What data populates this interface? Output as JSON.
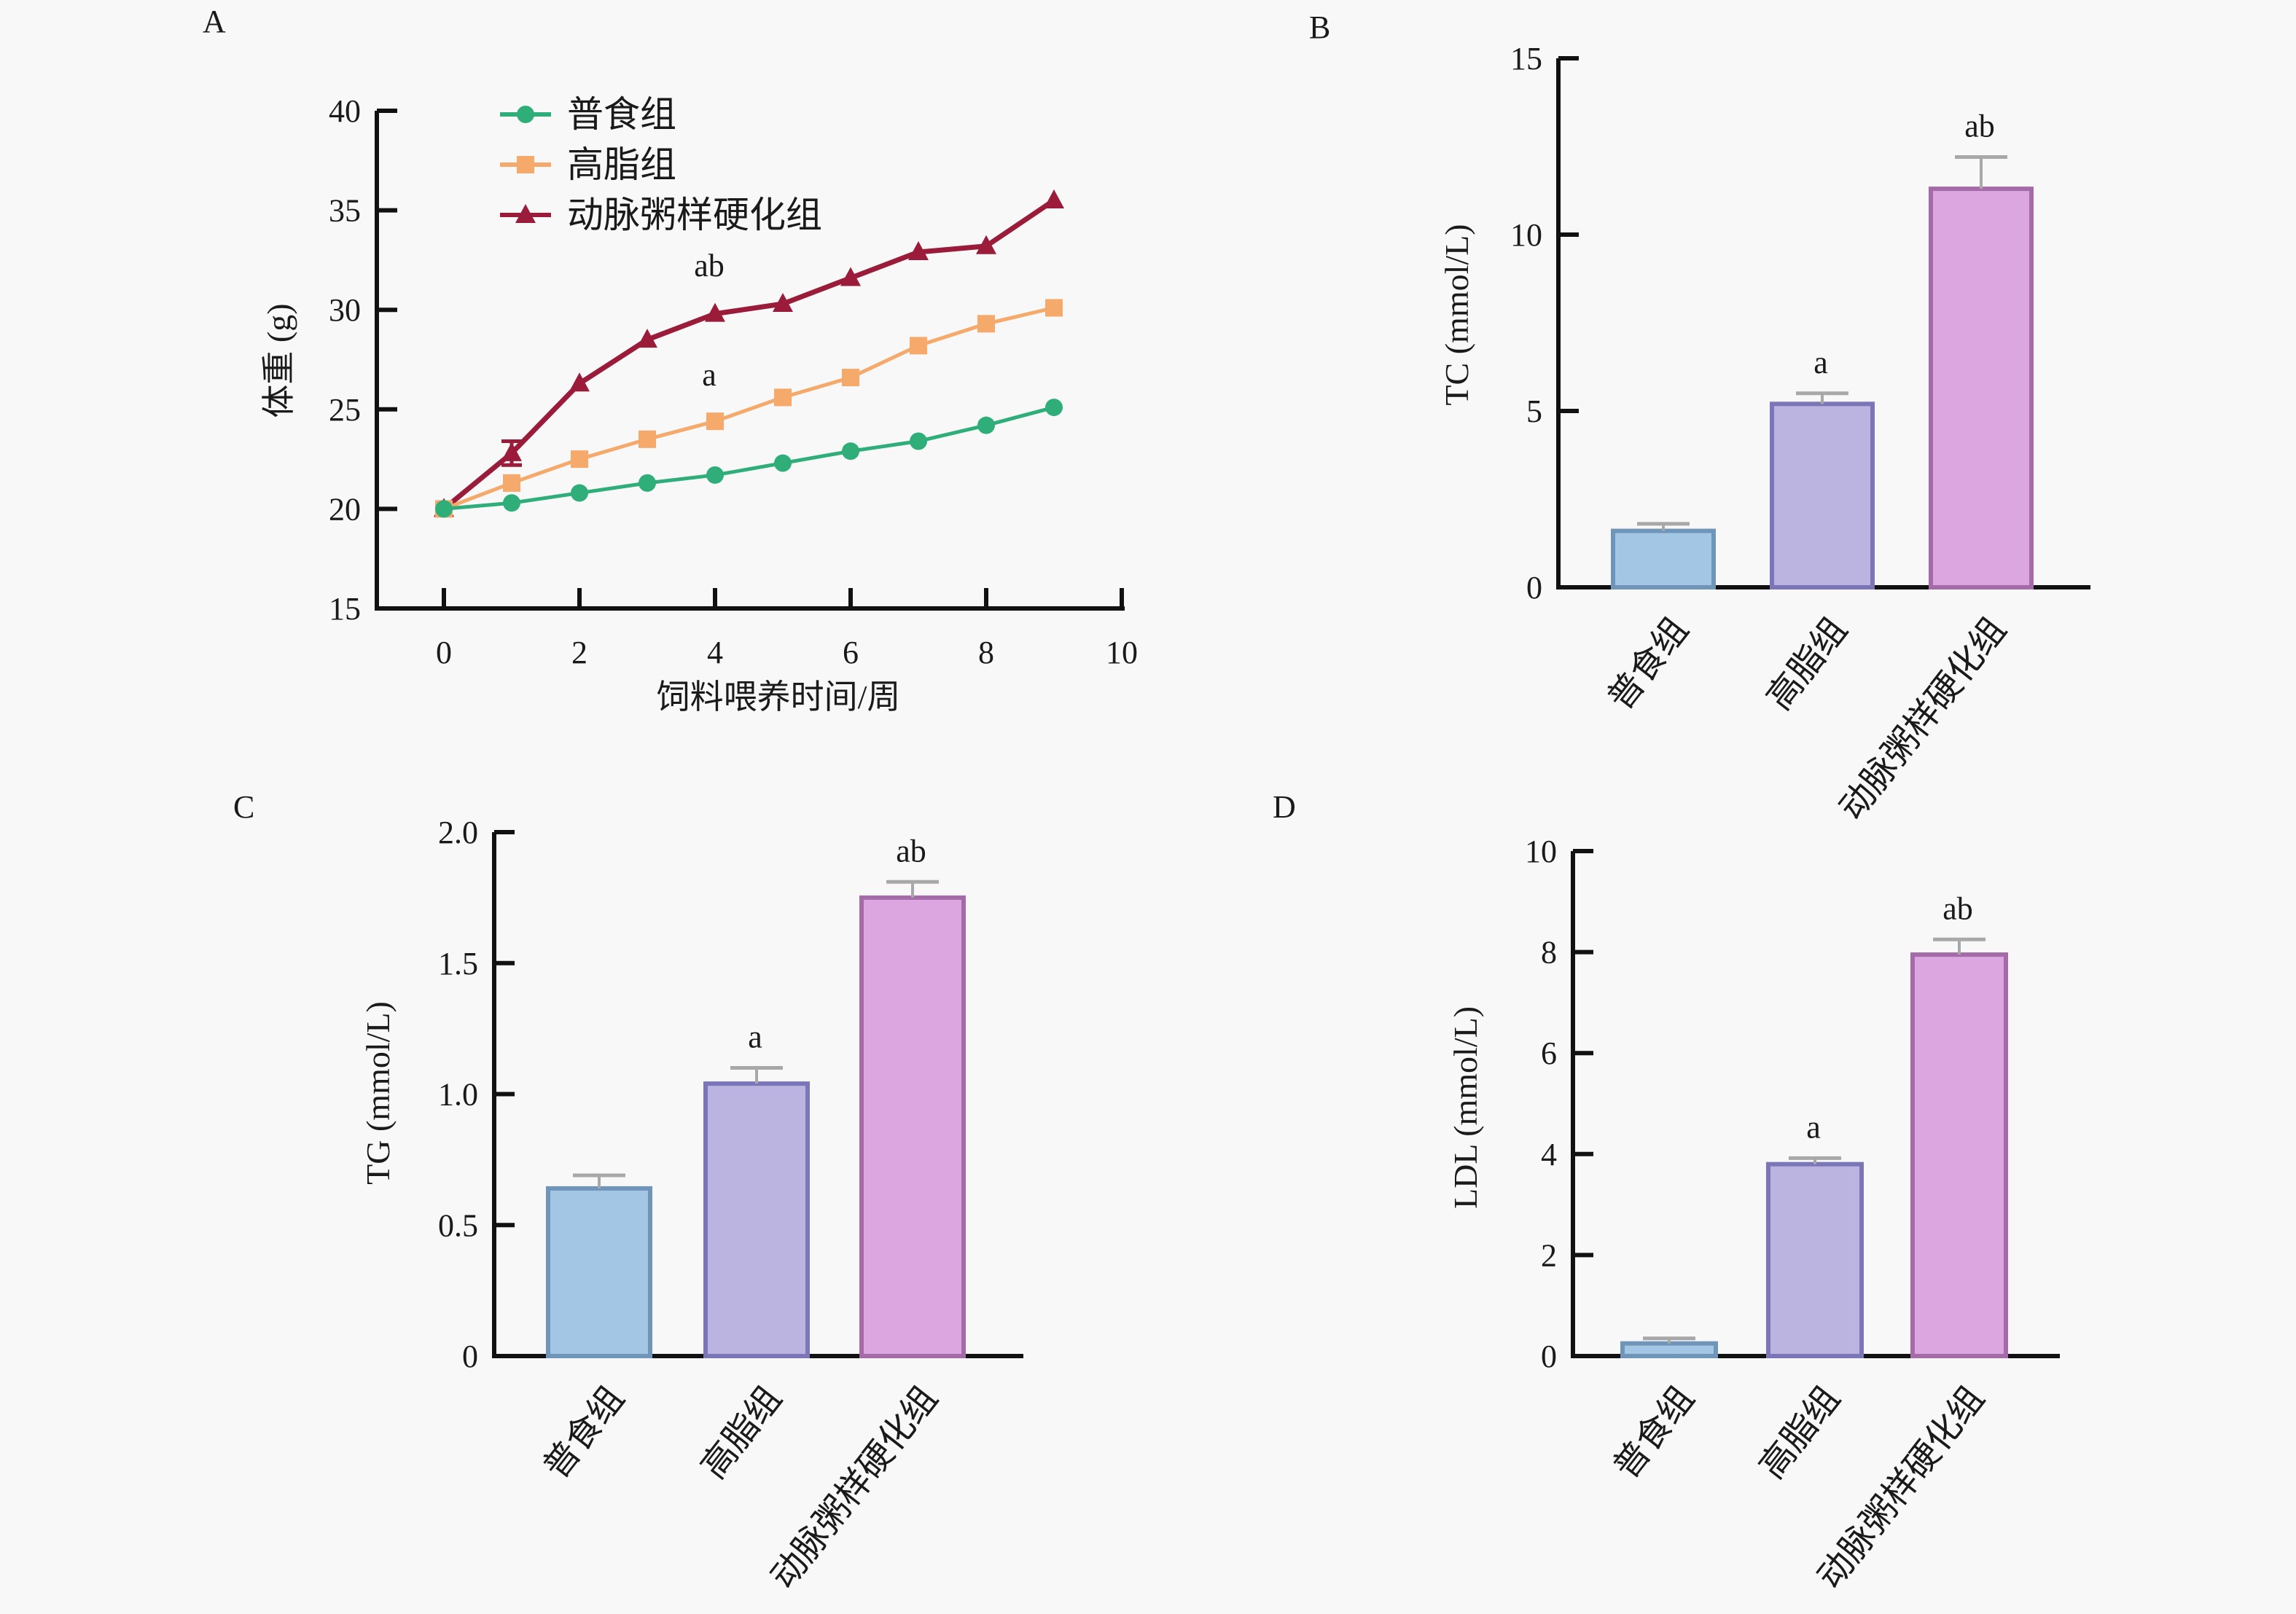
{
  "groups": [
    "普食组",
    "高脂组",
    "动脉粥样硬化组"
  ],
  "colors": {
    "normal_line": "#2fae7a",
    "highfat_line": "#f5a96a",
    "as_line": "#9b1c3a",
    "bar_normal_fill": "#a3c6e4",
    "bar_normal_stroke": "#6f95b8",
    "bar_highfat_fill": "#bbb3e0",
    "bar_highfat_stroke": "#7b76b8",
    "bar_as_fill": "#dca7e0",
    "bar_as_stroke": "#a56aa8",
    "errorbar": "#a8a8a8"
  },
  "chart_data": [
    {
      "panel": "A",
      "type": "line",
      "title": "",
      "xlabel": "饲料喂养时间/周",
      "ylabel": "体重 (g)",
      "xlim": [
        0,
        10
      ],
      "ylim": [
        15,
        40
      ],
      "xticks": [
        "0",
        "2",
        "4",
        "6",
        "8",
        "10"
      ],
      "yticks": [
        "15",
        "20",
        "25",
        "30",
        "35",
        "40"
      ],
      "grid": false,
      "legend": "top-left",
      "x": [
        0,
        1,
        2,
        3,
        4,
        5,
        6,
        7,
        8,
        9
      ],
      "series": [
        {
          "name": "普食组",
          "marker": "circle",
          "values": [
            20.0,
            20.3,
            20.8,
            21.3,
            21.7,
            22.3,
            22.9,
            23.4,
            24.2,
            25.1
          ]
        },
        {
          "name": "高脂组",
          "marker": "square",
          "values": [
            20.0,
            21.3,
            22.5,
            23.5,
            24.4,
            25.6,
            26.6,
            28.2,
            29.3,
            30.1
          ]
        },
        {
          "name": "动脉粥样硬化组",
          "marker": "triangle",
          "values": [
            20.0,
            22.8,
            26.3,
            28.5,
            29.8,
            30.3,
            31.6,
            32.9,
            33.2,
            35.5
          ],
          "error_at_week1": 0.6
        }
      ],
      "annotations": [
        {
          "text": "ab",
          "x": 4,
          "y": 31.7
        },
        {
          "text": "a",
          "x": 4,
          "y": 26.2
        }
      ]
    },
    {
      "panel": "B",
      "type": "bar",
      "ylabel": "TC (mmol/L)",
      "ylim": [
        0,
        15
      ],
      "yticks": [
        "0",
        "5",
        "10",
        "15"
      ],
      "categories": [
        "普食组",
        "高脂组",
        "动脉粥样硬化组"
      ],
      "values": [
        1.6,
        5.2,
        11.3
      ],
      "errors": [
        0.2,
        0.3,
        0.9
      ],
      "sig_labels": [
        "",
        "a",
        "ab"
      ]
    },
    {
      "panel": "C",
      "type": "bar",
      "ylabel": "TG (mmol/L)",
      "ylim": [
        0,
        2.0
      ],
      "yticks": [
        "0",
        "0.5",
        "1.0",
        "1.5",
        "2.0"
      ],
      "categories": [
        "普食组",
        "高脂组",
        "动脉粥样硬化组"
      ],
      "values": [
        0.64,
        1.04,
        1.75
      ],
      "errors": [
        0.05,
        0.06,
        0.06
      ],
      "sig_labels": [
        "",
        "a",
        "ab"
      ]
    },
    {
      "panel": "D",
      "type": "bar",
      "ylabel": "LDL (mmol/L)",
      "ylim": [
        0,
        10
      ],
      "yticks": [
        "0",
        "2",
        "4",
        "6",
        "8",
        "10"
      ],
      "categories": [
        "普食组",
        "高脂组",
        "动脉粥样硬化组"
      ],
      "values": [
        0.25,
        3.8,
        7.95
      ],
      "errors": [
        0.1,
        0.12,
        0.3
      ],
      "sig_labels": [
        "",
        "a",
        "ab"
      ]
    }
  ]
}
